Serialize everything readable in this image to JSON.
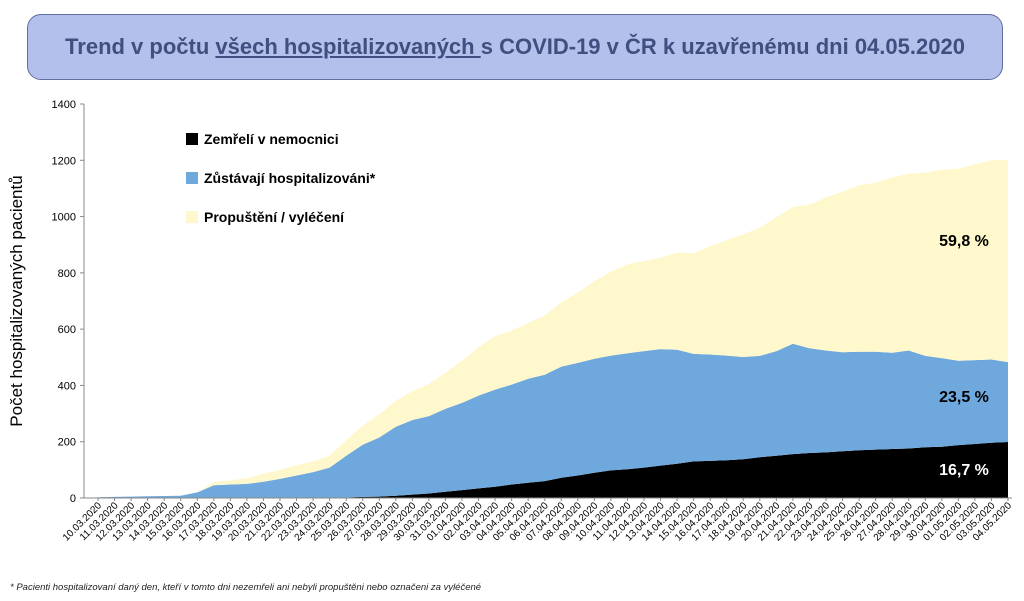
{
  "header": {
    "title_part1": "Trend v počtu ",
    "title_underlined": "všech hospitalizovaných ",
    "title_part2": "s COVID-19 v ČR k uzavřenému dni 04.05.2020"
  },
  "footnote": "*  Pacienti hospitalizovaní daný den, kteří v tomto dni nezemřeli ani nebyli propuštěni nebo označeni za vyléčené",
  "colors": {
    "deaths": "#000000",
    "hospitalized": "#6fa8dc",
    "discharged": "#fff8cc",
    "title_bg": "#b4c0ec",
    "title_text": "#3f4f7f"
  },
  "chart_data": {
    "type": "area",
    "stacked": true,
    "ylabel": "Počet hospitalizovaných pacientů",
    "ylim": [
      0,
      1400
    ],
    "yticks": [
      0,
      200,
      400,
      600,
      800,
      1000,
      1200,
      1400
    ],
    "grid": false,
    "legend_position": "top-left",
    "categories": [
      "10.03.2020",
      "11.03.2020",
      "12.03.2020",
      "13.03.2020",
      "14.03.2020",
      "15.03.2020",
      "16.03.2020",
      "17.03.2020",
      "18.03.2020",
      "19.03.2020",
      "20.03.2020",
      "21.03.2020",
      "22.03.2020",
      "23.03.2020",
      "24.03.2020",
      "25.03.2020",
      "26.03.2020",
      "27.03.2020",
      "28.03.2020",
      "29.03.2020",
      "30.03.2020",
      "31.03.2020",
      "01.04.2020",
      "02.04.2020",
      "03.04.2020",
      "04.04.2020",
      "05.04.2020",
      "06.04.2020",
      "07.04.2020",
      "08.04.2020",
      "09.04.2020",
      "10.04.2020",
      "11.04.2020",
      "12.04.2020",
      "13.04.2020",
      "14.04.2020",
      "15.04.2020",
      "16.04.2020",
      "17.04.2020",
      "18.04.2020",
      "19.04.2020",
      "20.04.2020",
      "21.04.2020",
      "22.04.2020",
      "23.04.2020",
      "24.04.2020",
      "25.04.2020",
      "26.04.2020",
      "27.04.2020",
      "28.04.2020",
      "29.04.2020",
      "30.04.2020",
      "01.05.2020",
      "02.05.2020",
      "03.05.2020",
      "04.05.2020"
    ],
    "series": [
      {
        "name": "Zemřelí v nemocnici",
        "values": [
          0,
          0,
          0,
          0,
          0,
          0,
          0,
          0,
          0,
          0,
          0,
          0,
          0,
          0,
          0,
          2,
          4,
          5,
          8,
          12,
          16,
          22,
          28,
          34,
          40,
          48,
          54,
          60,
          72,
          80,
          90,
          98,
          102,
          108,
          115,
          122,
          130,
          132,
          134,
          138,
          145,
          150,
          156,
          160,
          162,
          166,
          170,
          172,
          174,
          176,
          180,
          182,
          188,
          192,
          196,
          199
        ]
      },
      {
        "name": "Zůstávají hospitalizováni*",
        "values": [
          3,
          4,
          5,
          6,
          7,
          8,
          20,
          45,
          48,
          50,
          58,
          68,
          80,
          92,
          108,
          148,
          185,
          210,
          245,
          265,
          275,
          295,
          310,
          330,
          345,
          355,
          370,
          378,
          395,
          400,
          405,
          408,
          412,
          414,
          414,
          405,
          382,
          378,
          372,
          363,
          360,
          372,
          392,
          372,
          362,
          352,
          350,
          348,
          342,
          348,
          325,
          315,
          300,
          298,
          296,
          284
        ]
      },
      {
        "name": "Propuštění / vyléčení",
        "values": [
          0,
          0,
          0,
          0,
          0,
          0,
          0,
          12,
          15,
          20,
          28,
          32,
          36,
          38,
          42,
          55,
          68,
          82,
          92,
          102,
          114,
          128,
          150,
          172,
          190,
          192,
          198,
          210,
          228,
          250,
          275,
          298,
          316,
          320,
          325,
          345,
          358,
          385,
          410,
          436,
          455,
          476,
          486,
          510,
          544,
          570,
          592,
          600,
          624,
          628,
          651,
          670,
          682,
          696,
          708,
          718
        ]
      }
    ],
    "annotations": [
      "16,7 %",
      "23,5 %",
      "59,8 %"
    ]
  }
}
